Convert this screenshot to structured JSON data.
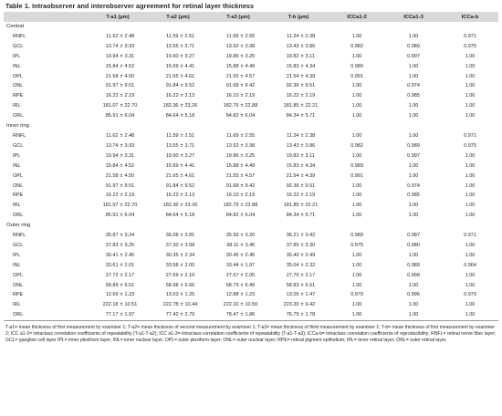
{
  "title": "Table 1. Intraobserver and interobserver agreement for retinal layer thickness",
  "headers": [
    "",
    "T-a1 (µm)",
    "T-a2 (µm)",
    "T-a3 (µm)",
    "T-b (µm)",
    "ICCa1-2",
    "ICCa1-3",
    "ICCa-b"
  ],
  "sections": [
    {
      "name": "Central",
      "rows": [
        [
          "RNFL",
          "11.62",
          "2.48",
          "11.59",
          "2.51",
          "11.69",
          "2.55",
          "11.24",
          "2.38",
          "1.00",
          "1.00",
          "0.971"
        ],
        [
          "GCL",
          "13.74",
          "3.93",
          "13.55",
          "3.71",
          "13.92",
          "3.98",
          "13.43",
          "3.86",
          "0.982",
          "0.989",
          "0.975"
        ],
        [
          "IPL",
          "19.94",
          "3.31",
          "19.90",
          "3.27",
          "19.86",
          "3.25",
          "19.82",
          "3.11",
          "1.00",
          "0.997",
          "1.00"
        ],
        [
          "INL",
          "15.84",
          "4.52",
          "15.69",
          "4.41",
          "15.88",
          "4.49",
          "15.83",
          "4.34",
          "0.989",
          "1.00",
          "1.00"
        ],
        [
          "OPL",
          "21.58",
          "4.50",
          "21.65",
          "4.61",
          "21.55",
          "4.57",
          "21.54",
          "4.39",
          "0.991",
          "1.00",
          "1.00"
        ],
        [
          "ONL",
          "91.97",
          "9.51",
          "91.84",
          "9.52",
          "91.68",
          "9.42",
          "92.36",
          "9.51",
          "1.00",
          "0.974",
          "1.00"
        ],
        [
          "RPE",
          "16.22",
          "2.19",
          "16.22",
          "2.13",
          "16.10",
          "2.19",
          "16.22",
          "2.19",
          "1.00",
          "0.985",
          "1.00"
        ],
        [
          "IRL",
          "181.07",
          "22.70",
          "182.36",
          "23.26",
          "182.79",
          "22.88",
          "181.85",
          "22.21",
          "1.00",
          "1.00",
          "1.00"
        ],
        [
          "ORL",
          "85.91",
          "6.04",
          "84.64",
          "5.18",
          "84.82",
          "6.04",
          "84.34",
          "5.71",
          "1.00",
          "1.00",
          "1.00"
        ]
      ]
    },
    {
      "name": "Inner ring",
      "rows": [
        [
          "RNFL",
          "11.62",
          "2.48",
          "11.59",
          "2.51",
          "11.69",
          "2.55",
          "11.24",
          "2.38",
          "1.00",
          "1.00",
          "0.971"
        ],
        [
          "GCL",
          "13.74",
          "3.93",
          "13.55",
          "3.71",
          "13.92",
          "3.98",
          "13.43",
          "3.86",
          "0.982",
          "0.989",
          "0.975"
        ],
        [
          "IPL",
          "19.94",
          "3.31",
          "19.90",
          "3.27",
          "19.86",
          "3.25",
          "19.82",
          "3.11",
          "1.00",
          "0.997",
          "1.00"
        ],
        [
          "INL",
          "15.84",
          "4.52",
          "15.69",
          "4.41",
          "15.88",
          "4.49",
          "15.83",
          "4.34",
          "0.989",
          "1.00",
          "1.00"
        ],
        [
          "OPL",
          "21.58",
          "4.50",
          "21.65",
          "4.61",
          "21.55",
          "4.57",
          "21.54",
          "4.39",
          "0.991",
          "1.00",
          "1.00"
        ],
        [
          "ONL",
          "91.97",
          "9.51",
          "91.84",
          "9.52",
          "91.68",
          "9.42",
          "92.36",
          "9.51",
          "1.00",
          "0.974",
          "1.00"
        ],
        [
          "RPE",
          "16.22",
          "2.19",
          "16.22",
          "2.13",
          "16.10",
          "2.19",
          "16.22",
          "2.19",
          "1.00",
          "0.985",
          "1.00"
        ],
        [
          "IRL",
          "181.07",
          "22.70",
          "182.36",
          "23.26",
          "182.79",
          "22.88",
          "181.85",
          "22.21",
          "1.00",
          "1.00",
          "1.00"
        ],
        [
          "ORL",
          "85.91",
          "6.04",
          "84.64",
          "5.18",
          "84.82",
          "6.04",
          "84.34",
          "5.71",
          "1.00",
          "1.00",
          "1.00"
        ]
      ]
    },
    {
      "name": "Outer ring",
      "rows": [
        [
          "RNFL",
          "35.87",
          "3.24",
          "36.08",
          "3.81",
          "35.56",
          "3.20",
          "36.21",
          "3.42",
          "0.989",
          "0.987",
          "0.971"
        ],
        [
          "GCL",
          "37.83",
          "3.25",
          "37.30",
          "3.08",
          "38.11",
          "3.46",
          "37.85",
          "3.30",
          "0.975",
          "0.980",
          "1.00"
        ],
        [
          "IPL",
          "30.41",
          "2.45",
          "30.35",
          "2.34",
          "30.45",
          "2.45",
          "30.40",
          "2.49",
          "1.00",
          "1.00",
          "1.00"
        ],
        [
          "INL",
          "33.61",
          "2.01",
          "33.58",
          "2.00",
          "33.44",
          "1.97",
          "35.04",
          "2.32",
          "1.00",
          "0.989",
          "0.964"
        ],
        [
          "OPL",
          "27.72",
          "2.17",
          "27.69",
          "2.10",
          "27.57",
          "2.05",
          "27.70",
          "2.17",
          "1.00",
          "0.998",
          "1.00"
        ],
        [
          "ONL",
          "58.89",
          "6.51",
          "58.98",
          "6.66",
          "58.75",
          "6.49",
          "58.83",
          "6.51",
          "1.00",
          "1.00",
          "1.00"
        ],
        [
          "RPE",
          "12.69",
          "1.23",
          "13.03",
          "1.25",
          "12.88",
          "1.23",
          "13.05",
          "1.47",
          "0.979",
          "0.996",
          "0.979"
        ],
        [
          "IRL",
          "222.18",
          "10.51",
          "222.78",
          "10.44",
          "222.10",
          "10.50",
          "223.20",
          "9.42",
          "1.00",
          "1.00",
          "1.00"
        ],
        [
          "ORL",
          "77.17",
          "1.97",
          "77.42",
          "2.79",
          "78.47",
          "1.86",
          "76.75",
          "1.78",
          "1.00",
          "1.00",
          "1.00"
        ]
      ]
    }
  ],
  "footnote": "T-a1= mean thickness of first measurement by examiner 1; T-a2= mean thickness of second measurement by examiner 1; T-a3= mean thickness of third measurement by examiner 1; T-b= mean thickness of first measurement by examiner 2; ICC a1-2= intraclass correlation coefficients of repeatability (T-a1-T-a2); ICC a1-3= intraclass correlation coefficients of repeatability (T-a1-T-a3); ICCa-b= intraclass correlation coefficients of reproducibility; RNFL= retinal nerve fiber layer; GCL= ganglion cell layer IPL= inner plexiform layer; INL= inner nuclear layer; OPL= outer plexiform layer; ONL= outer nuclear layer; RPE= retinal pigment epithelium; IRL= inner retinal layer; ORL= outer retinal layer.",
  "pm_symbol": "±"
}
